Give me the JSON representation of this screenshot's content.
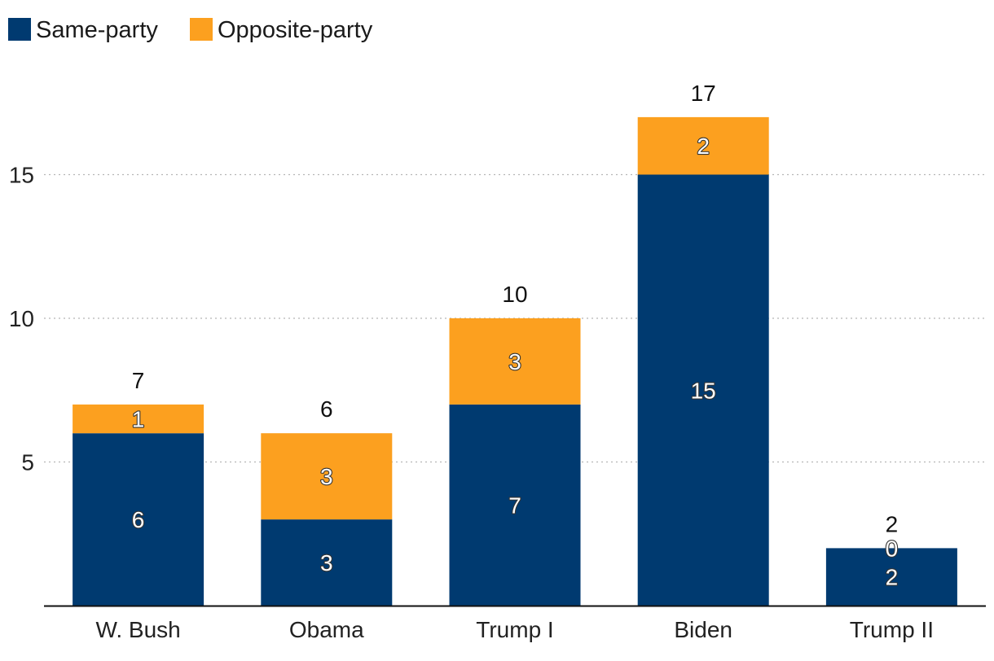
{
  "chart_data": {
    "type": "bar",
    "stacked": true,
    "title": "",
    "xlabel": "",
    "ylabel": "",
    "categories": [
      "W. Bush",
      "Obama",
      "Trump I",
      "Biden",
      "Trump II"
    ],
    "series": [
      {
        "name": "Same-party",
        "color": "#003a70",
        "values": [
          6,
          3,
          7,
          15,
          2
        ]
      },
      {
        "name": "Opposite-party",
        "color": "#fca01f",
        "values": [
          1,
          3,
          3,
          2,
          0
        ]
      }
    ],
    "totals": [
      7,
      6,
      10,
      17,
      2
    ],
    "y_ticks": [
      5,
      10,
      15
    ],
    "ylim": [
      0,
      20
    ],
    "grid": "horizontal dotted",
    "legend_position": "top-left"
  }
}
